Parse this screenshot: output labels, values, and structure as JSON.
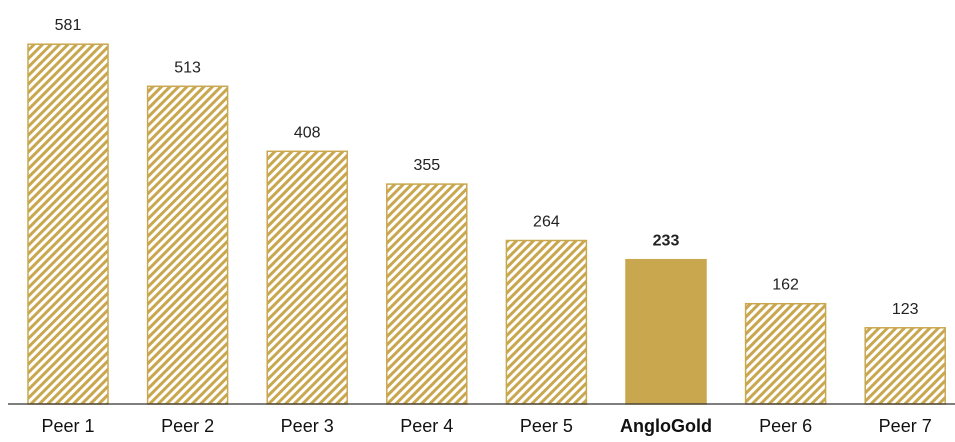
{
  "chart_data": {
    "type": "bar",
    "categories": [
      "Peer 1",
      "Peer 2",
      "Peer 3",
      "Peer 4",
      "Peer 5",
      "AngloGold",
      "Peer 6",
      "Peer 7"
    ],
    "values": [
      581,
      513,
      408,
      355,
      264,
      233,
      162,
      123
    ],
    "data_labels": [
      "581",
      "513",
      "408",
      "355",
      "264",
      "233",
      "162",
      "123"
    ],
    "highlight_index": 5,
    "ylim": [
      0,
      620
    ],
    "grid": false,
    "legend": "none",
    "colors": {
      "bar": "#c9a74f",
      "hatch_bg": "#ffffff",
      "axis": "#333333"
    }
  }
}
